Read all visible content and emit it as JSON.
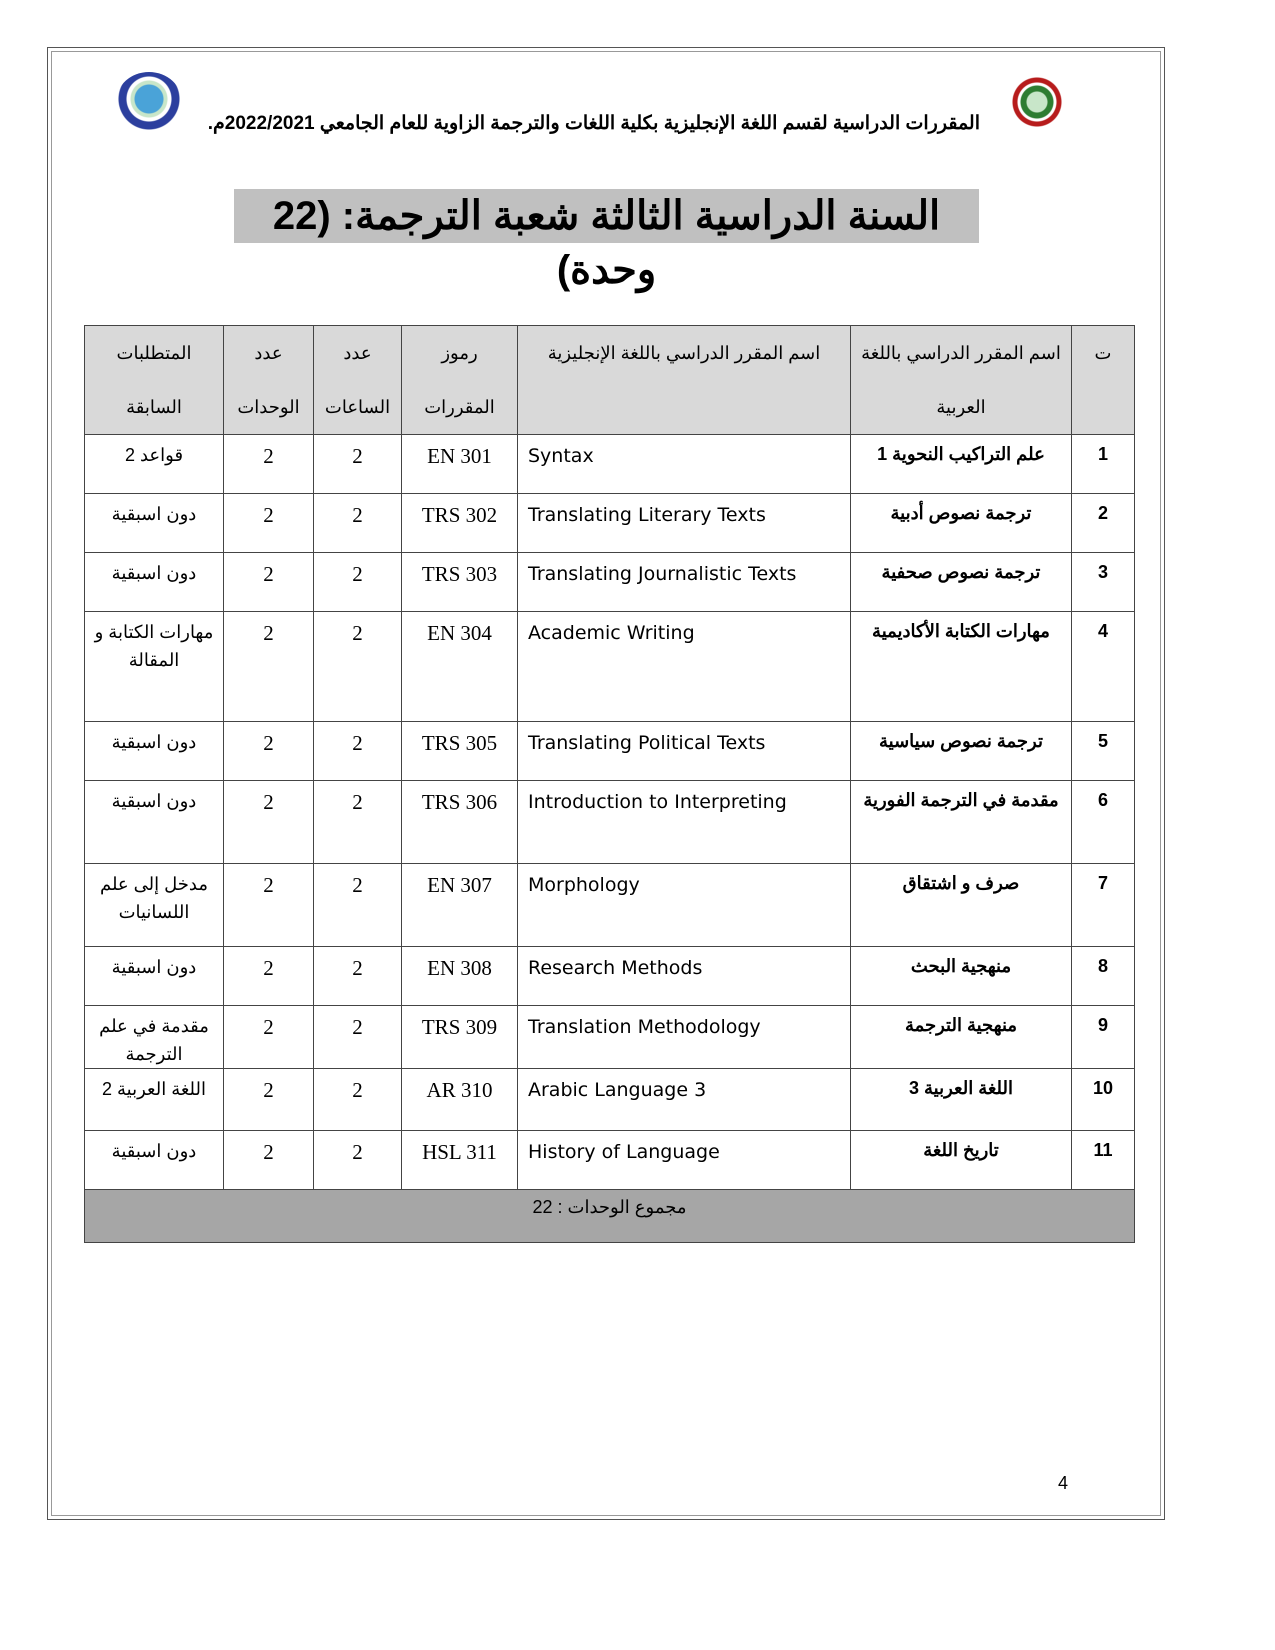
{
  "header": {
    "subtitle": "المقررات الدراسية لقسم اللغة الإنجليزية بكلية اللغات والترجمة الزاوية للعام الجامعي 2022/2021م.",
    "title": "السنة الدراسية الثالثة شعبة الترجمة: (22 وحدة)"
  },
  "table": {
    "headers": [
      "ت",
      "اسم المقرر الدراسي باللغة العربية",
      "اسم المقرر الدراسي باللغة الإنجليزية",
      "رموز المقررات",
      "عدد الساعات",
      "عدد الوحدات",
      "المتطلبات السابقة"
    ],
    "rows": [
      {
        "n": "1",
        "ar": "علم التراكيب النحوية 1",
        "en": "Syntax",
        "code": "EN  301",
        "hours": "2",
        "units": "2",
        "pre": "قواعد 2"
      },
      {
        "n": "2",
        "ar": "ترجمة نصوص أدبية",
        "en": "Translating Literary Texts",
        "code": "TRS 302",
        "hours": "2",
        "units": "2",
        "pre": "دون اسبقية"
      },
      {
        "n": "3",
        "ar": "ترجمة نصوص صحفية",
        "en": "Translating Journalistic Texts",
        "code": "TRS 303",
        "hours": "2",
        "units": "2",
        "pre": "دون اسبقية"
      },
      {
        "n": "4",
        "ar": "مهارات الكتابة الأكاديمية",
        "en": "Academic Writing",
        "code": "EN  304",
        "hours": "2",
        "units": "2",
        "pre": "مهارات الكتابة و المقالة"
      },
      {
        "n": "5",
        "ar": "ترجمة نصوص سياسية",
        "en": "Translating Political Texts",
        "code": "TRS 305",
        "hours": "2",
        "units": "2",
        "pre": "دون اسبقية"
      },
      {
        "n": "6",
        "ar": "مقدمة في الترجمة الفورية",
        "en": "Introduction to Interpreting",
        "code": "TRS 306",
        "hours": "2",
        "units": "2",
        "pre": "دون اسبقية"
      },
      {
        "n": "7",
        "ar": "صرف و اشتقاق",
        "en": "Morphology",
        "code": "EN  307",
        "hours": "2",
        "units": "2",
        "pre": "مدخل إلى علم اللسانيات"
      },
      {
        "n": "8",
        "ar": "منهجية البحث",
        "en": "Research Methods",
        "code": "EN  308",
        "hours": "2",
        "units": "2",
        "pre": "دون اسبقية"
      },
      {
        "n": "9",
        "ar": "منهجية الترجمة",
        "en": "Translation Methodology",
        "code": "TRS 309",
        "hours": "2",
        "units": "2",
        "pre": "مقدمة في علم الترجمة"
      },
      {
        "n": "10",
        "ar": "اللغة العربية 3",
        "en": "Arabic Language  3",
        "code": "AR 310",
        "hours": "2",
        "units": "2",
        "pre": "اللغة العربية 2"
      },
      {
        "n": "11",
        "ar": "تاريخ اللغة",
        "en": "History of Language",
        "code": "HSL 311",
        "hours": "2",
        "units": "2",
        "pre": "دون اسبقية"
      }
    ],
    "total": "مجموع الوحدات : 22"
  },
  "page_number": "4"
}
